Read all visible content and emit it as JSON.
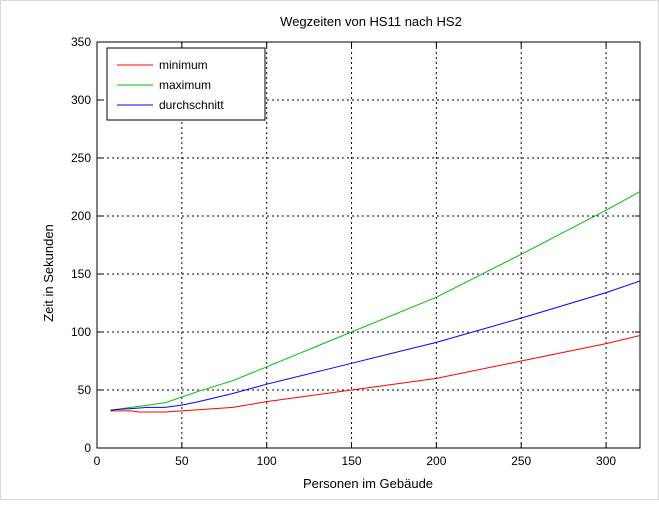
{
  "chart_data": {
    "type": "line",
    "title": "Wegzeiten von HS11 nach HS2",
    "xlabel": "Personen im Gebäude",
    "ylabel": "Zeit in Sekunden",
    "xlim": [
      0,
      320
    ],
    "ylim": [
      0,
      350
    ],
    "xticks": [
      0,
      50,
      100,
      150,
      200,
      250,
      300
    ],
    "yticks": [
      0,
      50,
      100,
      150,
      200,
      250,
      300,
      350
    ],
    "grid": true,
    "legend_position": "top-left",
    "series": [
      {
        "name": "minimum",
        "color": "#ff0000",
        "x": [
          8,
          10,
          20,
          25,
          30,
          40,
          50,
          60,
          80,
          100,
          150,
          200,
          250,
          300,
          320
        ],
        "y": [
          32,
          32,
          32,
          31,
          31,
          31,
          32,
          33,
          35,
          40,
          50,
          60,
          75,
          90,
          97
        ]
      },
      {
        "name": "maximum",
        "color": "#00c000",
        "x": [
          8,
          10,
          20,
          30,
          40,
          50,
          60,
          80,
          100,
          150,
          200,
          250,
          300,
          320
        ],
        "y": [
          33,
          33,
          35,
          37,
          39,
          44,
          49,
          58,
          70,
          100,
          130,
          167,
          205,
          221
        ]
      },
      {
        "name": "durchschnitt",
        "color": "#0000ff",
        "x": [
          8,
          10,
          20,
          30,
          40,
          50,
          60,
          80,
          100,
          150,
          200,
          250,
          300,
          320
        ],
        "y": [
          32,
          33,
          34,
          35,
          35,
          37,
          40,
          47,
          55,
          73,
          91,
          112,
          134,
          144
        ]
      }
    ]
  }
}
